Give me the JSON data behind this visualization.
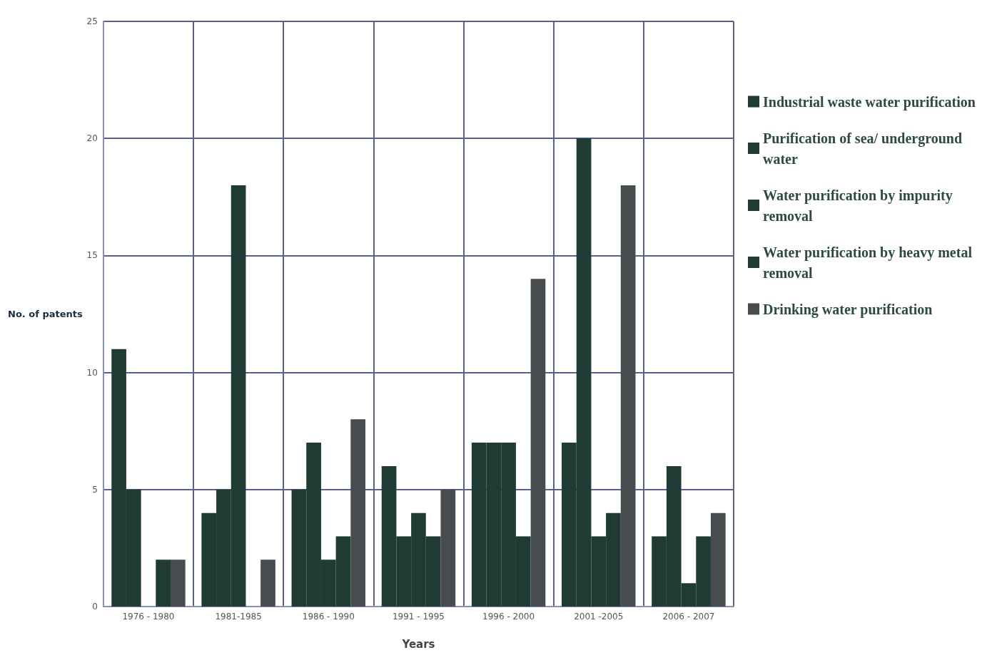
{
  "chart_data": {
    "type": "bar",
    "xlabel": "Years",
    "ylabel": "No. of patents",
    "categories": [
      "1976 - 1980",
      "1981-1985",
      "1986 - 1990",
      "1991 - 1995",
      "1996 - 2000",
      "2001 -2005",
      "2006 - 2007"
    ],
    "series": [
      {
        "name": "Industrial waste water purification",
        "color": "#1f3b33",
        "values": [
          11,
          4,
          5,
          6,
          7,
          7,
          3
        ]
      },
      {
        "name": "Purification of sea/ underground water",
        "color": "#1f3b33",
        "values": [
          5,
          5,
          7,
          3,
          7,
          20,
          6
        ]
      },
      {
        "name": "Water purification by impurity removal",
        "color": "#1f3b33",
        "values": [
          0,
          18,
          2,
          4,
          7,
          3,
          1
        ]
      },
      {
        "name": "Water purification by heavy metal removal",
        "color": "#1f3b33",
        "values": [
          2,
          0,
          3,
          3,
          3,
          4,
          3
        ]
      },
      {
        "name": "Drinking water purification",
        "color": "#474d4f",
        "values": [
          2,
          2,
          8,
          5,
          14,
          18,
          4
        ]
      }
    ],
    "ylim": [
      0,
      25
    ],
    "yticks": [
      0,
      5,
      10,
      15,
      20,
      25
    ],
    "grid": true,
    "legend": "right"
  }
}
